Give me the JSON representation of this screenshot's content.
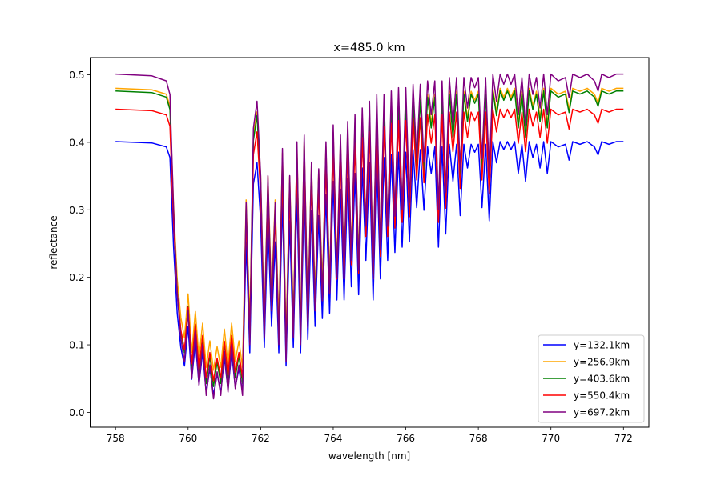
{
  "chart_data": {
    "type": "line",
    "title": "x=485.0 km",
    "xlabel": "wavelength [nm]",
    "ylabel": "reflectance",
    "xlim": [
      757.3,
      772.7
    ],
    "ylim": [
      -0.022,
      0.5255
    ],
    "xticks": [
      758,
      760,
      762,
      764,
      766,
      768,
      770,
      772
    ],
    "xtick_labels": [
      "758",
      "760",
      "762",
      "764",
      "766",
      "768",
      "770",
      "772"
    ],
    "yticks": [
      0.0,
      0.1,
      0.2,
      0.3,
      0.4,
      0.5
    ],
    "ytick_labels": [
      "0.0",
      "0.1",
      "0.2",
      "0.3",
      "0.4",
      "0.5"
    ],
    "grid": false,
    "legend_position": "bottom-right",
    "series": [
      {
        "name": "y=132.1km",
        "color": "#0000ff",
        "continuum": 0.401
      },
      {
        "name": "y=256.9km",
        "color": "#ffa500",
        "continuum": 0.48
      },
      {
        "name": "y=403.6km",
        "color": "#008000",
        "continuum": 0.476
      },
      {
        "name": "y=550.4km",
        "color": "#ff0000",
        "continuum": 0.449
      },
      {
        "name": "y=697.2km",
        "color": "#800080",
        "continuum": 0.501
      }
    ],
    "x": [
      758.0,
      759.0,
      759.4,
      759.5,
      759.6,
      759.7,
      759.8,
      759.9,
      760.0,
      760.1,
      760.2,
      760.3,
      760.4,
      760.5,
      760.6,
      760.7,
      760.8,
      760.9,
      761.0,
      761.1,
      761.2,
      761.3,
      761.4,
      761.5,
      761.6,
      761.7,
      761.8,
      761.9,
      762.0,
      762.1,
      762.2,
      762.3,
      762.4,
      762.5,
      762.6,
      762.7,
      762.8,
      762.9,
      763.0,
      763.1,
      763.2,
      763.3,
      763.4,
      763.5,
      763.6,
      763.7,
      763.8,
      763.9,
      764.0,
      764.1,
      764.2,
      764.3,
      764.4,
      764.5,
      764.6,
      764.7,
      764.8,
      764.9,
      765.0,
      765.1,
      765.2,
      765.3,
      765.4,
      765.5,
      765.6,
      765.7,
      765.8,
      765.9,
      766.0,
      766.1,
      766.2,
      766.3,
      766.4,
      766.5,
      766.6,
      766.7,
      766.8,
      766.9,
      767.0,
      767.1,
      767.2,
      767.3,
      767.4,
      767.5,
      767.6,
      767.7,
      767.8,
      767.9,
      768.0,
      768.1,
      768.2,
      768.3,
      768.4,
      768.5,
      768.6,
      768.7,
      768.8,
      768.9,
      769.0,
      769.1,
      769.2,
      769.3,
      769.4,
      769.5,
      769.6,
      769.7,
      769.8,
      769.9,
      770.0,
      770.2,
      770.4,
      770.5,
      770.6,
      770.8,
      771.0,
      771.2,
      771.3,
      771.4,
      771.6,
      771.8,
      772.0
    ],
    "profile": [
      1.0,
      0.995,
      0.98,
      0.94,
      0.6,
      0.35,
      0.22,
      0.15,
      0.3,
      0.1,
      0.24,
      0.08,
      0.2,
      0.05,
      0.14,
      0.04,
      0.12,
      0.05,
      0.18,
      0.06,
      0.2,
      0.07,
      0.14,
      0.05,
      0.62,
      0.2,
      0.84,
      0.92,
      0.7,
      0.22,
      0.7,
      0.3,
      0.62,
      0.2,
      0.78,
      0.15,
      0.7,
      0.22,
      0.8,
      0.2,
      0.82,
      0.25,
      0.74,
      0.3,
      0.72,
      0.33,
      0.8,
      0.35,
      0.85,
      0.4,
      0.82,
      0.4,
      0.86,
      0.45,
      0.88,
      0.42,
      0.9,
      0.55,
      0.92,
      0.4,
      0.94,
      0.48,
      0.94,
      0.55,
      0.95,
      0.58,
      0.96,
      0.6,
      0.96,
      0.62,
      0.97,
      0.75,
      0.97,
      0.74,
      0.98,
      0.88,
      0.98,
      0.6,
      0.98,
      0.65,
      0.99,
      0.85,
      0.99,
      0.72,
      0.99,
      0.9,
      0.99,
      0.96,
      0.99,
      0.75,
      0.99,
      0.7,
      1.0,
      0.92,
      1.0,
      0.97,
      1.0,
      0.97,
      1.0,
      0.88,
      0.99,
      0.85,
      1.0,
      0.94,
      0.99,
      0.9,
      1.0,
      0.88,
      1.0,
      0.98,
      0.99,
      0.93,
      1.0,
      0.99,
      1.0,
      0.98,
      0.95,
      1.0,
      0.99,
      1.0,
      1.0
    ]
  }
}
